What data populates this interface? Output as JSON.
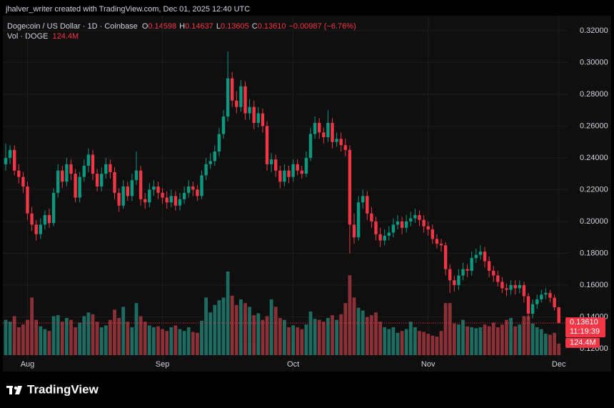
{
  "chart_data": {
    "type": "candlestick",
    "caption": "jhalver_writer created with TradingView.com, Dec 01, 2025 12:40 UTC",
    "title": "Dogecoin / US Dollar · 1D · Coinbase",
    "legend": {
      "o_key": "O",
      "o": "0.14598",
      "h_key": "H",
      "h": "0.14637",
      "l_key": "L",
      "l": "0.13605",
      "c_key": "C",
      "c": "0.13610",
      "change": "−0.00987 (−6.76%)"
    },
    "volume_name": "Vol · DOGE",
    "volume_value_label": "124.4M",
    "last_price_label": "0.13610",
    "countdown": "11:19:39",
    "brand": "TradingView",
    "up_color": "#089981",
    "down_color": "#f23645",
    "volume_up_color": "#1d6b61",
    "volume_down_color": "#8a3036",
    "categories": [
      null,
      null,
      null,
      null,
      null,
      "Aug",
      null,
      null,
      null,
      null,
      null,
      null,
      null,
      null,
      null,
      null,
      null,
      null,
      null,
      null,
      null,
      null,
      null,
      null,
      null,
      null,
      null,
      null,
      null,
      null,
      null,
      null,
      null,
      null,
      null,
      null,
      "Sep",
      null,
      null,
      null,
      null,
      null,
      null,
      null,
      null,
      null,
      null,
      null,
      null,
      null,
      null,
      null,
      null,
      null,
      null,
      null,
      null,
      null,
      null,
      null,
      null,
      null,
      null,
      null,
      null,
      null,
      "Oct",
      null,
      null,
      null,
      null,
      null,
      null,
      null,
      null,
      null,
      null,
      null,
      null,
      null,
      null,
      null,
      null,
      null,
      null,
      null,
      null,
      null,
      null,
      null,
      null,
      null,
      null,
      null,
      null,
      null,
      null,
      "Nov",
      null,
      null,
      null,
      null,
      null,
      null,
      null,
      null,
      null,
      null,
      null,
      null,
      null,
      null,
      null,
      null,
      null,
      null,
      null,
      null,
      null,
      null,
      null,
      null,
      null,
      null,
      null,
      null,
      null,
      "Dec"
    ],
    "open": [
      0.236,
      0.24,
      0.245,
      0.232,
      0.228,
      0.222,
      0.205,
      0.198,
      0.192,
      0.198,
      0.204,
      0.199,
      0.218,
      0.232,
      0.225,
      0.236,
      0.23,
      0.215,
      0.228,
      0.235,
      0.242,
      0.23,
      0.222,
      0.23,
      0.236,
      0.231,
      0.218,
      0.21,
      0.222,
      0.216,
      0.226,
      0.232,
      0.214,
      0.212,
      0.22,
      0.222,
      0.218,
      0.215,
      0.212,
      0.216,
      0.21,
      0.214,
      0.218,
      0.222,
      0.22,
      0.216,
      0.229,
      0.236,
      0.238,
      0.244,
      0.255,
      0.266,
      0.29,
      0.276,
      0.272,
      0.285,
      0.268,
      0.272,
      0.262,
      0.268,
      0.26,
      0.236,
      0.239,
      0.232,
      0.225,
      0.232,
      0.228,
      0.236,
      0.232,
      0.23,
      0.24,
      0.255,
      0.262,
      0.256,
      0.253,
      0.262,
      0.25,
      0.252,
      0.248,
      0.245,
      0.198,
      0.19,
      0.212,
      0.216,
      0.205,
      0.2,
      0.192,
      0.188,
      0.191,
      0.193,
      0.198,
      0.2,
      0.196,
      0.2,
      0.202,
      0.204,
      0.201,
      0.197,
      0.195,
      0.189,
      0.186,
      0.185,
      0.17,
      0.163,
      0.16,
      0.166,
      0.17,
      0.169,
      0.177,
      0.179,
      0.181,
      0.175,
      0.169,
      0.166,
      0.162,
      0.158,
      0.157,
      0.16,
      0.158,
      0.16,
      0.153,
      0.142,
      0.148,
      0.151,
      0.154,
      0.155,
      0.152,
      0.14598
    ],
    "high": [
      0.249,
      0.248,
      0.248,
      0.236,
      0.231,
      0.225,
      0.209,
      0.201,
      0.202,
      0.207,
      0.208,
      0.221,
      0.236,
      0.235,
      0.24,
      0.239,
      0.233,
      0.231,
      0.239,
      0.246,
      0.245,
      0.233,
      0.234,
      0.24,
      0.239,
      0.234,
      0.221,
      0.226,
      0.225,
      0.23,
      0.244,
      0.235,
      0.218,
      0.224,
      0.226,
      0.225,
      0.221,
      0.219,
      0.22,
      0.219,
      0.218,
      0.222,
      0.226,
      0.225,
      0.223,
      0.232,
      0.24,
      0.243,
      0.248,
      0.259,
      0.27,
      0.307,
      0.294,
      0.282,
      0.289,
      0.288,
      0.277,
      0.276,
      0.272,
      0.271,
      0.263,
      0.243,
      0.242,
      0.235,
      0.236,
      0.235,
      0.239,
      0.239,
      0.235,
      0.244,
      0.259,
      0.266,
      0.265,
      0.259,
      0.27,
      0.265,
      0.256,
      0.256,
      0.252,
      0.248,
      0.205,
      0.216,
      0.22,
      0.219,
      0.209,
      0.203,
      0.196,
      0.195,
      0.197,
      0.202,
      0.204,
      0.203,
      0.204,
      0.206,
      0.208,
      0.207,
      0.204,
      0.2,
      0.198,
      0.192,
      0.189,
      0.187,
      0.173,
      0.166,
      0.17,
      0.174,
      0.173,
      0.181,
      0.183,
      0.185,
      0.184,
      0.178,
      0.172,
      0.169,
      0.165,
      0.161,
      0.163,
      0.163,
      0.163,
      0.162,
      0.155,
      0.151,
      0.154,
      0.157,
      0.158,
      0.157,
      0.154,
      0.14637
    ],
    "low": [
      0.232,
      0.236,
      0.229,
      0.224,
      0.218,
      0.201,
      0.194,
      0.188,
      0.189,
      0.195,
      0.196,
      0.197,
      0.215,
      0.221,
      0.222,
      0.226,
      0.212,
      0.212,
      0.225,
      0.231,
      0.226,
      0.219,
      0.219,
      0.227,
      0.227,
      0.214,
      0.206,
      0.208,
      0.213,
      0.213,
      0.223,
      0.21,
      0.208,
      0.209,
      0.216,
      0.214,
      0.211,
      0.208,
      0.209,
      0.207,
      0.207,
      0.211,
      0.215,
      0.216,
      0.213,
      0.214,
      0.226,
      0.233,
      0.235,
      0.241,
      0.252,
      0.263,
      0.272,
      0.268,
      0.269,
      0.264,
      0.264,
      0.258,
      0.259,
      0.256,
      0.232,
      0.231,
      0.228,
      0.221,
      0.222,
      0.224,
      0.225,
      0.229,
      0.227,
      0.228,
      0.238,
      0.252,
      0.252,
      0.249,
      0.25,
      0.246,
      0.247,
      0.244,
      0.241,
      0.18,
      0.186,
      0.188,
      0.208,
      0.201,
      0.196,
      0.188,
      0.184,
      0.185,
      0.188,
      0.19,
      0.195,
      0.192,
      0.193,
      0.197,
      0.199,
      0.197,
      0.193,
      0.191,
      0.186,
      0.183,
      0.181,
      0.166,
      0.155,
      0.156,
      0.157,
      0.163,
      0.165,
      0.166,
      0.174,
      0.176,
      0.171,
      0.165,
      0.162,
      0.159,
      0.155,
      0.153,
      0.154,
      0.154,
      0.155,
      0.149,
      0.138,
      0.139,
      0.145,
      0.149,
      0.151,
      0.149,
      0.144,
      0.13605
    ],
    "close": [
      0.24,
      0.245,
      0.232,
      0.228,
      0.222,
      0.205,
      0.198,
      0.192,
      0.198,
      0.204,
      0.199,
      0.218,
      0.232,
      0.225,
      0.236,
      0.23,
      0.215,
      0.228,
      0.235,
      0.242,
      0.23,
      0.222,
      0.23,
      0.236,
      0.231,
      0.218,
      0.21,
      0.222,
      0.216,
      0.226,
      0.232,
      0.214,
      0.212,
      0.22,
      0.222,
      0.218,
      0.215,
      0.212,
      0.216,
      0.21,
      0.214,
      0.218,
      0.222,
      0.22,
      0.216,
      0.229,
      0.236,
      0.238,
      0.244,
      0.255,
      0.266,
      0.29,
      0.276,
      0.272,
      0.285,
      0.268,
      0.272,
      0.262,
      0.268,
      0.26,
      0.236,
      0.239,
      0.232,
      0.225,
      0.232,
      0.228,
      0.236,
      0.232,
      0.23,
      0.24,
      0.255,
      0.262,
      0.256,
      0.253,
      0.262,
      0.25,
      0.252,
      0.248,
      0.245,
      0.198,
      0.19,
      0.212,
      0.216,
      0.205,
      0.2,
      0.192,
      0.188,
      0.191,
      0.193,
      0.198,
      0.2,
      0.196,
      0.2,
      0.202,
      0.204,
      0.201,
      0.197,
      0.195,
      0.189,
      0.186,
      0.185,
      0.17,
      0.163,
      0.16,
      0.166,
      0.17,
      0.169,
      0.177,
      0.179,
      0.181,
      0.175,
      0.169,
      0.166,
      0.162,
      0.158,
      0.157,
      0.16,
      0.158,
      0.16,
      0.153,
      0.142,
      0.148,
      0.151,
      0.154,
      0.155,
      0.152,
      0.14598,
      0.1361
    ],
    "volume": [
      380,
      360,
      420,
      300,
      330,
      380,
      620,
      380,
      310,
      280,
      260,
      420,
      430,
      360,
      400,
      380,
      300,
      350,
      420,
      460,
      440,
      360,
      300,
      320,
      380,
      490,
      400,
      520,
      360,
      300,
      560,
      420,
      360,
      320,
      300,
      310,
      280,
      260,
      300,
      320,
      280,
      260,
      300,
      250,
      240,
      370,
      620,
      460,
      540,
      590,
      620,
      900,
      640,
      540,
      600,
      560,
      520,
      430,
      450,
      380,
      420,
      600,
      520,
      400,
      380,
      300,
      320,
      300,
      280,
      330,
      470,
      390,
      380,
      360,
      400,
      430,
      380,
      440,
      560,
      860,
      620,
      510,
      480,
      410,
      430,
      460,
      360,
      300,
      280,
      300,
      240,
      260,
      280,
      360,
      300,
      260,
      250,
      230,
      210,
      200,
      260,
      560,
      560,
      340,
      330,
      380,
      310,
      300,
      290,
      300,
      330,
      310,
      350,
      300,
      330,
      380,
      400,
      310,
      330,
      420,
      420,
      340,
      300,
      280,
      230,
      220,
      240,
      124.4
    ],
    "ylim": [
      0.1056,
      0.3294
    ],
    "volume_ylim": [
      0,
      900
    ],
    "yticks": [
      {
        "value": 0.12,
        "label": "0.12000"
      },
      {
        "value": 0.14,
        "label": "0.14000"
      },
      {
        "value": 0.16,
        "label": "0.16000"
      },
      {
        "value": 0.18,
        "label": "0.18000"
      },
      {
        "value": 0.2,
        "label": "0.20000"
      },
      {
        "value": 0.22,
        "label": "0.22000"
      },
      {
        "value": 0.24,
        "label": "0.24000"
      },
      {
        "value": 0.26,
        "label": "0.26000"
      },
      {
        "value": 0.28,
        "label": "0.28000"
      },
      {
        "value": 0.3,
        "label": "0.30000"
      },
      {
        "value": 0.32,
        "label": "0.32000"
      }
    ],
    "grid": true
  }
}
